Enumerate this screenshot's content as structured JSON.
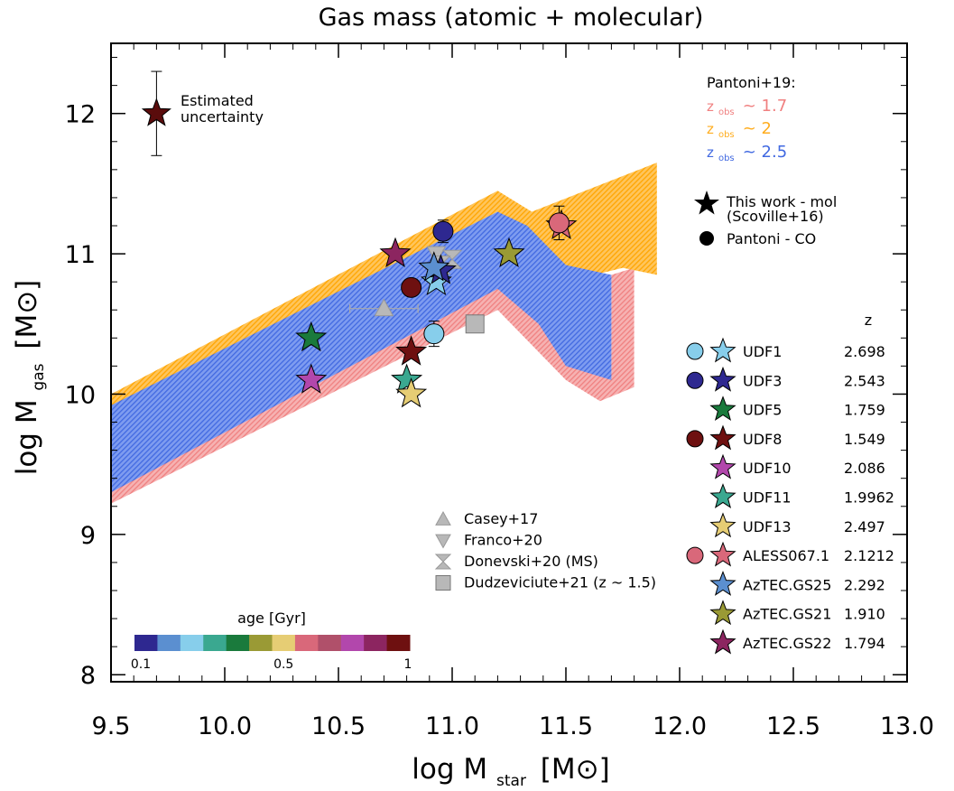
{
  "chart_data": {
    "type": "scatter",
    "title": "Gas mass (atomic + molecular)",
    "xlabel": "log M",
    "xlabel_sub": "star",
    "xlabel_unit": "[M⊙]",
    "ylabel": "log M",
    "ylabel_sub": "gas",
    "ylabel_unit": "[M⊙]",
    "xlim": [
      9.5,
      13.0
    ],
    "ylim": [
      7.95,
      12.5
    ],
    "x_ticks": [
      9.5,
      10.0,
      10.5,
      11.0,
      11.5,
      12.0,
      12.5,
      13.0
    ],
    "x_tick_labels": [
      "9.5",
      "10.0",
      "10.5",
      "11.0",
      "11.5",
      "12.0",
      "12.5",
      "13.0"
    ],
    "y_ticks": [
      8,
      9,
      10,
      11,
      12
    ],
    "y_tick_labels": [
      "8",
      "9",
      "10",
      "11",
      "12"
    ],
    "bands": [
      {
        "name": "z_obs ~ 1.7",
        "color": "#f08080",
        "upper": [
          [
            9.5,
            9.7
          ],
          [
            11.2,
            10.8
          ],
          [
            11.35,
            10.6
          ],
          [
            11.7,
            10.15
          ],
          [
            11.8,
            10.2
          ]
        ],
        "lower": [
          [
            9.5,
            9.22
          ],
          [
            11.2,
            10.6
          ],
          [
            11.5,
            10.1
          ],
          [
            11.65,
            9.95
          ],
          [
            11.8,
            10.05
          ]
        ],
        "polygon": [
          [
            9.5,
            9.7
          ],
          [
            11.2,
            10.8
          ],
          [
            11.35,
            10.6
          ],
          [
            11.7,
            10.15
          ],
          [
            11.7,
            10.85
          ],
          [
            11.8,
            10.9
          ],
          [
            11.8,
            10.05
          ],
          [
            11.65,
            9.95
          ],
          [
            11.5,
            10.1
          ],
          [
            11.2,
            10.6
          ],
          [
            9.5,
            9.22
          ]
        ]
      },
      {
        "name": "z_obs ~ 2",
        "color": "#ffad1f",
        "polygon": [
          [
            9.5,
            10.0
          ],
          [
            11.2,
            11.45
          ],
          [
            11.35,
            11.3
          ],
          [
            11.9,
            11.65
          ],
          [
            11.9,
            10.85
          ],
          [
            11.75,
            10.9
          ],
          [
            11.5,
            10.8
          ],
          [
            11.4,
            10.5
          ],
          [
            11.2,
            11.3
          ],
          [
            9.5,
            9.9
          ]
        ]
      },
      {
        "name": "z_obs ~ 2.5",
        "color": "#4169e1",
        "polygon": [
          [
            9.5,
            9.92
          ],
          [
            11.2,
            11.3
          ],
          [
            11.33,
            11.2
          ],
          [
            11.5,
            10.92
          ],
          [
            11.7,
            10.85
          ],
          [
            11.7,
            10.1
          ],
          [
            11.5,
            10.2
          ],
          [
            11.38,
            10.5
          ],
          [
            11.2,
            10.75
          ],
          [
            9.5,
            9.3
          ]
        ]
      }
    ],
    "galaxies": [
      {
        "name": "UDF1",
        "z": "2.698",
        "z_color": "#4169e1",
        "color": "#87ceeb",
        "has_circle": true,
        "star": [
          10.93,
          10.8
        ],
        "circle": [
          10.92,
          10.43
        ],
        "circle_err": 0.09
      },
      {
        "name": "UDF3",
        "z": "2.543",
        "z_color": "#4169e1",
        "color": "#2e2890",
        "has_circle": true,
        "star": [
          10.95,
          10.88
        ],
        "circle": [
          10.96,
          11.16
        ],
        "circle_err": 0.08
      },
      {
        "name": "UDF5",
        "z": "1.759",
        "z_color": "#f08080",
        "color": "#1a7a3c",
        "has_circle": false,
        "star": [
          10.38,
          10.4
        ]
      },
      {
        "name": "UDF8",
        "z": "1.549",
        "z_color": "#f08080",
        "color": "#6e1010",
        "has_circle": true,
        "star": [
          10.82,
          10.3
        ],
        "circle": [
          10.82,
          10.76
        ],
        "circle_err": 0.0
      },
      {
        "name": "UDF10",
        "z": "2.086",
        "z_color": "#ffad1f",
        "color": "#b247ac",
        "has_circle": false,
        "star": [
          10.38,
          10.1
        ]
      },
      {
        "name": "UDF11",
        "z": "1.9962",
        "z_color": "#ffad1f",
        "color": "#3aa890",
        "has_circle": false,
        "star": [
          10.8,
          10.1
        ]
      },
      {
        "name": "UDF13",
        "z": "2.497",
        "z_color": "#4169e1",
        "color": "#e6cd74",
        "has_circle": false,
        "star": [
          10.82,
          10.0
        ]
      },
      {
        "name": "ALESS067.1",
        "z": "2.1212",
        "z_color": "#ffad1f",
        "color": "#d9687a",
        "has_circle": true,
        "star": [
          11.48,
          11.2
        ],
        "circle": [
          11.47,
          11.22
        ],
        "circle_err": 0.12
      },
      {
        "name": "AzTEC.GS25",
        "z": "2.292",
        "z_color": "#4169e1",
        "color": "#5b8fd0",
        "has_circle": false,
        "star": [
          10.92,
          10.9
        ]
      },
      {
        "name": "AzTEC.GS21",
        "z": "1.910",
        "z_color": "#ffad1f",
        "color": "#9a9a35",
        "has_circle": false,
        "star": [
          11.25,
          11.0
        ]
      },
      {
        "name": "AzTEC.GS22",
        "z": "1.794",
        "z_color": "#f08080",
        "color": "#8c2560",
        "has_circle": false,
        "star": [
          10.75,
          11.0
        ]
      }
    ],
    "literature": [
      {
        "name": "Casey+17",
        "marker": "triangle-up",
        "points": [
          [
            10.7,
            10.61
          ]
        ],
        "xerr": 0.15
      },
      {
        "name": "Franco+20",
        "marker": "triangle-down",
        "points": [
          [
            10.93,
            11.0
          ]
        ],
        "xerr": 0.0
      },
      {
        "name": "Donevski+20 (MS)",
        "marker": "hourglass",
        "points": [
          [
            11.0,
            10.96
          ],
          [
            10.95,
            10.92
          ]
        ],
        "xerr": 0.0
      },
      {
        "name": "Dudzeviciute+21 (z ~ 1.5)",
        "marker": "square",
        "points": [
          [
            11.1,
            10.5
          ]
        ],
        "xerr": 0.0
      }
    ],
    "uncertainty": {
      "label1": "Estimated",
      "label2": "uncertainty",
      "x": 9.7,
      "y": 12.0,
      "yerr": 0.3,
      "color": "#5a0c0c"
    },
    "legend_sources": {
      "title": "Pantoni+19:",
      "z_prefix": "z",
      "z_sub": "obs",
      "entries": [
        {
          "value": "~ 1.7",
          "color": "#f08080"
        },
        {
          "value": "~ 2",
          "color": "#ffad1f"
        },
        {
          "value": "~ 2.5",
          "color": "#4169e1"
        }
      ]
    },
    "legend_markers": [
      {
        "label": "This work - mol",
        "sub": "(Scoville+16)",
        "marker": "star"
      },
      {
        "label": "Pantoni - CO",
        "sub": "",
        "marker": "circle"
      }
    ],
    "z_header": "z",
    "colorbar": {
      "title": "age [Gyr]",
      "tick_labels": [
        "0.1",
        "0.5",
        "1"
      ],
      "colors": [
        "#2e2890",
        "#5b8fd0",
        "#87ceeb",
        "#3aa890",
        "#1a7a3c",
        "#9a9a35",
        "#e6cd74",
        "#d9687a",
        "#b0506a",
        "#b247ac",
        "#8c2560",
        "#6e1010"
      ]
    },
    "grid": false
  }
}
